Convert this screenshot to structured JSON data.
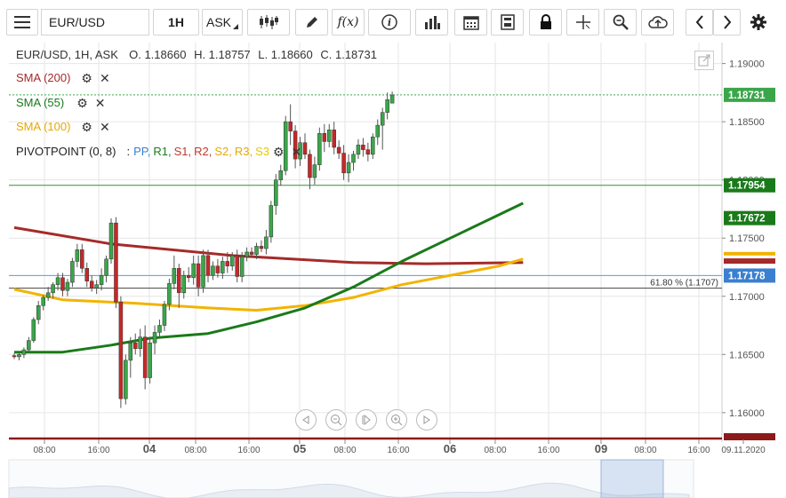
{
  "toolbar": {
    "symbol": "EUR/USD",
    "timeframe": "1H",
    "price_type": "ASK",
    "icons": [
      "menu-icon",
      "candlestick-icon",
      "pencil-icon",
      "function-icon",
      "info-icon",
      "bar-chart-icon",
      "calendar-icon",
      "calculator-icon",
      "lock-icon",
      "crosshair-icon",
      "zoom-icon",
      "cloud-upload-icon",
      "arrow-left-icon",
      "arrow-right-icon",
      "gear-icon"
    ]
  },
  "ohlc": {
    "prefix": "EUR/USD, 1H, ASK",
    "open": "O. 1.18660",
    "high": "H. 1.18757",
    "low": "L. 1.18660",
    "close": "C. 1.18731"
  },
  "indicators": [
    {
      "label": "SMA (200)",
      "color": "#a52a2a"
    },
    {
      "label": "SMA (55)",
      "color": "#1a7a1a"
    },
    {
      "label": "SMA (100)",
      "color": "#e8a800"
    }
  ],
  "pivot": {
    "label": "PIVOTPOINT (0, 8)",
    "sep": ":",
    "items": [
      {
        "label": "PP,",
        "color": "#3a7fd0"
      },
      {
        "label": "R1,",
        "color": "#1a7a1a"
      },
      {
        "label": "S1,",
        "color": "#c0392b"
      },
      {
        "label": "R2,",
        "color": "#c0392b"
      },
      {
        "label": "S2,",
        "color": "#e8a800"
      },
      {
        "label": "R3,",
        "color": "#e8a800"
      },
      {
        "label": "S3",
        "color": "#e8c800"
      }
    ]
  },
  "fib_label": "61.80 % (1.1707)",
  "colors": {
    "bull": "#3aa64a",
    "bear": "#c62828",
    "grid": "#e6e6e6",
    "sma200": "#a52a2a",
    "sma55": "#1a7a1a",
    "sma100": "#f2b400"
  },
  "chart_data": {
    "type": "line",
    "title": "EUR/USD, 1H, ASK",
    "ylim": [
      1.1577,
      1.1918
    ],
    "y_ticks": [
      "1.19000",
      "1.18500",
      "1.18000",
      "1.17500",
      "1.17000",
      "1.16500",
      "1.16000"
    ],
    "y_tick_values": [
      1.19,
      1.185,
      1.18,
      1.175,
      1.17,
      1.165,
      1.16
    ],
    "x_ticks": [
      "08:00",
      "16:00",
      "04",
      "08:00",
      "16:00",
      "05",
      "08:00",
      "16:00",
      "06",
      "08:00",
      "16:00",
      "09",
      "08:00",
      "16:00",
      "09.11.2020"
    ],
    "x_tick_bold": [
      false,
      false,
      true,
      false,
      false,
      true,
      false,
      false,
      true,
      false,
      false,
      true,
      false,
      false,
      false
    ],
    "price_labels": [
      {
        "text": "1.18731",
        "value": 1.18731,
        "bg": "#3aa64a"
      },
      {
        "text": "1.17954",
        "value": 1.17954,
        "bg": "#1a7a1a"
      },
      {
        "text": "1.17672",
        "value": 1.17672,
        "bg": "#1a7a1a"
      },
      {
        "text": "1.17178",
        "value": 1.17178,
        "bg": "#3a7fd0"
      }
    ],
    "hlines": [
      {
        "name": "R1",
        "value": 1.17954,
        "color": "#3a8a3a"
      },
      {
        "name": "PP",
        "value": 1.17178,
        "color": "#5b9bd5"
      },
      {
        "name": "Fib 61.8%",
        "value": 1.1707,
        "color": "#444"
      }
    ],
    "candles": [
      [
        1.1649,
        1.1651,
        1.1646,
        1.1648
      ],
      [
        1.1648,
        1.1652,
        1.1645,
        1.165
      ],
      [
        1.165,
        1.1656,
        1.1647,
        1.1654
      ],
      [
        1.1654,
        1.1665,
        1.1652,
        1.1662
      ],
      [
        1.1662,
        1.1682,
        1.166,
        1.168
      ],
      [
        1.168,
        1.1696,
        1.1676,
        1.1692
      ],
      [
        1.1692,
        1.1701,
        1.1688,
        1.1699
      ],
      [
        1.1699,
        1.1708,
        1.1696,
        1.1703
      ],
      [
        1.1703,
        1.1712,
        1.1698,
        1.171
      ],
      [
        1.171,
        1.172,
        1.1705,
        1.1716
      ],
      [
        1.1716,
        1.172,
        1.17,
        1.1705
      ],
      [
        1.1705,
        1.1715,
        1.17,
        1.1712
      ],
      [
        1.1712,
        1.1733,
        1.1708,
        1.173
      ],
      [
        1.173,
        1.1745,
        1.1725,
        1.174
      ],
      [
        1.174,
        1.1745,
        1.172,
        1.1724
      ],
      [
        1.1724,
        1.1729,
        1.1708,
        1.1713
      ],
      [
        1.1713,
        1.1718,
        1.1704,
        1.1707
      ],
      [
        1.1707,
        1.1714,
        1.1702,
        1.171
      ],
      [
        1.171,
        1.1724,
        1.1705,
        1.1718
      ],
      [
        1.1718,
        1.1735,
        1.1712,
        1.1732
      ],
      [
        1.1732,
        1.1767,
        1.1728,
        1.1763
      ],
      [
        1.1763,
        1.1768,
        1.169,
        1.1695
      ],
      [
        1.1695,
        1.17,
        1.1604,
        1.1612
      ],
      [
        1.1612,
        1.165,
        1.1607,
        1.1645
      ],
      [
        1.1645,
        1.1665,
        1.163,
        1.166
      ],
      [
        1.166,
        1.1668,
        1.165,
        1.1655
      ],
      [
        1.1655,
        1.1672,
        1.1648,
        1.1665
      ],
      [
        1.1665,
        1.1675,
        1.162,
        1.163
      ],
      [
        1.163,
        1.1665,
        1.1625,
        1.166
      ],
      [
        1.166,
        1.1675,
        1.165,
        1.1669
      ],
      [
        1.1669,
        1.168,
        1.1664,
        1.1675
      ],
      [
        1.1675,
        1.1696,
        1.167,
        1.1693
      ],
      [
        1.1693,
        1.1715,
        1.1688,
        1.1711
      ],
      [
        1.1711,
        1.1735,
        1.1706,
        1.1724
      ],
      [
        1.1724,
        1.1728,
        1.169,
        1.1703
      ],
      [
        1.1703,
        1.1722,
        1.1698,
        1.1718
      ],
      [
        1.1718,
        1.1725,
        1.1712,
        1.1716
      ],
      [
        1.1716,
        1.1735,
        1.171,
        1.1728
      ],
      [
        1.1728,
        1.1735,
        1.17,
        1.1708
      ],
      [
        1.1708,
        1.174,
        1.1703,
        1.1735
      ],
      [
        1.1735,
        1.174,
        1.1712,
        1.1718
      ],
      [
        1.1718,
        1.173,
        1.1714,
        1.1726
      ],
      [
        1.1726,
        1.1732,
        1.1716,
        1.172
      ],
      [
        1.172,
        1.1734,
        1.1715,
        1.173
      ],
      [
        1.173,
        1.1738,
        1.172,
        1.1726
      ],
      [
        1.1726,
        1.1738,
        1.1722,
        1.1735
      ],
      [
        1.1735,
        1.174,
        1.1712,
        1.1717
      ],
      [
        1.1717,
        1.1738,
        1.1712,
        1.1734
      ],
      [
        1.1734,
        1.1742,
        1.173,
        1.1738
      ],
      [
        1.1738,
        1.1742,
        1.1733,
        1.1736
      ],
      [
        1.1736,
        1.1746,
        1.1732,
        1.1743
      ],
      [
        1.1743,
        1.1748,
        1.1738,
        1.1741
      ],
      [
        1.1741,
        1.1757,
        1.1736,
        1.1751
      ],
      [
        1.1751,
        1.1782,
        1.1746,
        1.1778
      ],
      [
        1.1778,
        1.1805,
        1.177,
        1.18
      ],
      [
        1.18,
        1.1813,
        1.1795,
        1.1808
      ],
      [
        1.1808,
        1.1855,
        1.1804,
        1.185
      ],
      [
        1.185,
        1.1865,
        1.183,
        1.1842
      ],
      [
        1.1842,
        1.1847,
        1.181,
        1.1818
      ],
      [
        1.1818,
        1.1837,
        1.1812,
        1.1832
      ],
      [
        1.1832,
        1.184,
        1.1818,
        1.1822
      ],
      [
        1.1822,
        1.1826,
        1.1792,
        1.1802
      ],
      [
        1.1802,
        1.182,
        1.1796,
        1.1813
      ],
      [
        1.1813,
        1.1845,
        1.1808,
        1.184
      ],
      [
        1.184,
        1.1848,
        1.1824,
        1.1833
      ],
      [
        1.1833,
        1.1848,
        1.1828,
        1.1843
      ],
      [
        1.1843,
        1.185,
        1.1822,
        1.1828
      ],
      [
        1.1828,
        1.1834,
        1.1818,
        1.1823
      ],
      [
        1.1823,
        1.183,
        1.18,
        1.1806
      ],
      [
        1.1806,
        1.1822,
        1.1798,
        1.1815
      ],
      [
        1.1815,
        1.1825,
        1.1808,
        1.1822
      ],
      [
        1.1822,
        1.1835,
        1.1818,
        1.183
      ],
      [
        1.183,
        1.1836,
        1.182,
        1.1826
      ],
      [
        1.1826,
        1.1832,
        1.1816,
        1.1822
      ],
      [
        1.1822,
        1.184,
        1.1818,
        1.1837
      ],
      [
        1.1837,
        1.1852,
        1.183,
        1.1847
      ],
      [
        1.1847,
        1.1862,
        1.1826,
        1.1858
      ],
      [
        1.1858,
        1.1875,
        1.1852,
        1.1869
      ],
      [
        1.1866,
        1.1876,
        1.1866,
        1.1873
      ]
    ],
    "sma200": [
      [
        0,
        1.1759
      ],
      [
        20,
        1.1745
      ],
      [
        45,
        1.1735
      ],
      [
        70,
        1.1729
      ],
      [
        85,
        1.1728
      ],
      [
        105,
        1.1729
      ]
    ],
    "sma55": [
      [
        0,
        1.1652
      ],
      [
        10,
        1.1652
      ],
      [
        20,
        1.1658
      ],
      [
        28,
        1.1664
      ],
      [
        40,
        1.1668
      ],
      [
        50,
        1.1678
      ],
      [
        60,
        1.169
      ],
      [
        70,
        1.1708
      ],
      [
        80,
        1.173
      ],
      [
        90,
        1.175
      ],
      [
        100,
        1.177
      ],
      [
        105,
        1.178
      ]
    ],
    "sma100": [
      [
        0,
        1.1706
      ],
      [
        10,
        1.1697
      ],
      [
        25,
        1.1694
      ],
      [
        40,
        1.169
      ],
      [
        50,
        1.1688
      ],
      [
        60,
        1.1692
      ],
      [
        70,
        1.1699
      ],
      [
        80,
        1.171
      ],
      [
        90,
        1.1718
      ],
      [
        100,
        1.1726
      ],
      [
        105,
        1.1732
      ]
    ]
  }
}
